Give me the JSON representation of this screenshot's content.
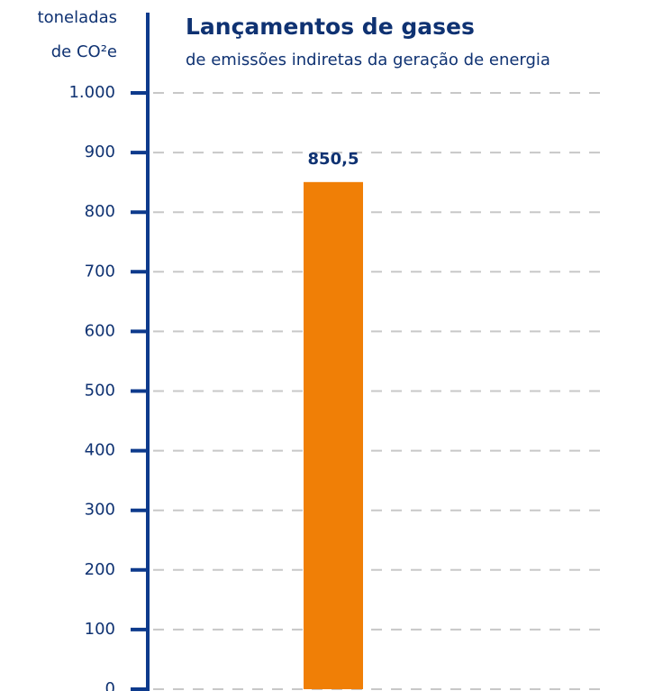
{
  "chart_data": {
    "type": "bar",
    "title": "Lançamentos de gases",
    "subtitle": "de emissões indiretas da geração de energia",
    "y_label": [
      "toneladas",
      "de CO²e"
    ],
    "categories": [
      null
    ],
    "values": [
      850.5
    ],
    "value_labels": [
      "850,5"
    ],
    "color": "#f07f06",
    "ylim": [
      0,
      1000
    ],
    "yticks": [
      0,
      100,
      200,
      300,
      400,
      500,
      600,
      700,
      800,
      900,
      {
        "value": 1000,
        "label": "1.000"
      }
    ],
    "grid": true
  }
}
